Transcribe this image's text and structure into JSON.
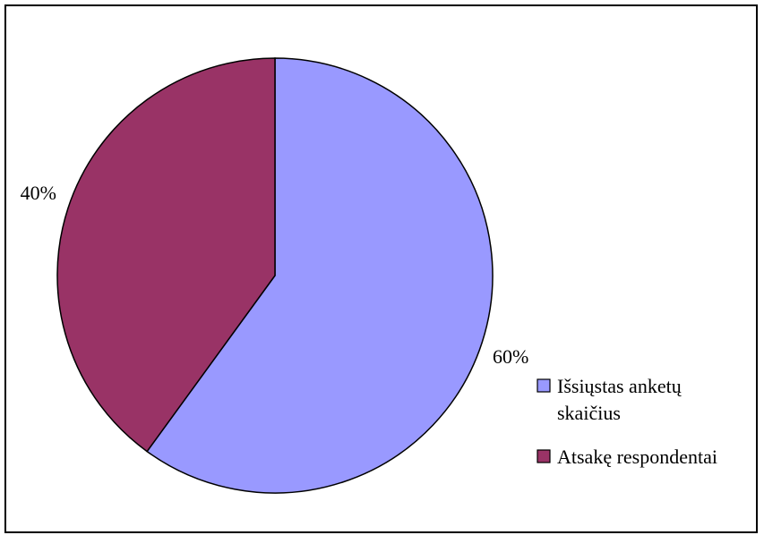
{
  "chart_data": {
    "type": "pie",
    "categories": [
      "Išsiųstas anketų skaičius",
      "Atsakę respondentai"
    ],
    "values": [
      60,
      40
    ],
    "data_labels": [
      "60%",
      "40%"
    ],
    "colors": [
      "#9999ff",
      "#993366"
    ],
    "legend": {
      "placement": "right",
      "entries": [
        {
          "lines": [
            "Išsiųstas anketų",
            "skaičius"
          ],
          "color": "#9999ff"
        },
        {
          "lines": [
            "Atsakę respondentai"
          ],
          "color": "#993366"
        }
      ]
    },
    "title": "",
    "start_angle_deg": 0,
    "direction": "clockwise"
  }
}
